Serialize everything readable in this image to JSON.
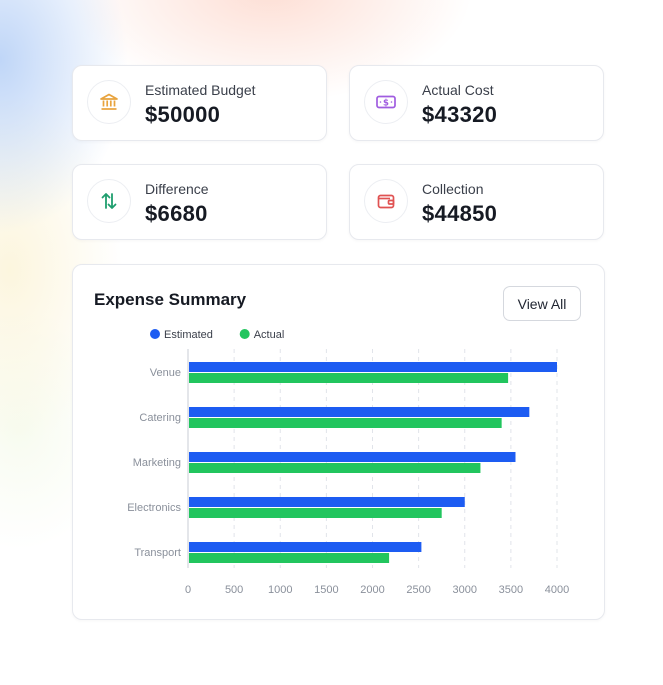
{
  "stats": [
    {
      "label": "Estimated Budget",
      "value": "$50000",
      "icon": "bank-icon",
      "color": "#e8a33d"
    },
    {
      "label": "Actual Cost",
      "value": "$43320",
      "icon": "money-icon",
      "color": "#a05ce0"
    },
    {
      "label": "Difference",
      "value": "$6680",
      "icon": "arrows-up-down-icon",
      "color": "#1f9e6e"
    },
    {
      "label": "Collection",
      "value": "$44850",
      "icon": "wallet-icon",
      "color": "#e05252"
    }
  ],
  "chart_card": {
    "title": "Expense Summary",
    "view_all_label": "View All"
  },
  "chart_data": {
    "type": "bar",
    "orientation": "horizontal",
    "categories": [
      "Venue",
      "Catering",
      "Marketing",
      "Electronics",
      "Transport"
    ],
    "series": [
      {
        "name": "Estimated",
        "color": "#1d5cf2",
        "values": [
          4000,
          3700,
          3550,
          3000,
          2530
        ]
      },
      {
        "name": "Actual",
        "color": "#22c55e",
        "values": [
          3470,
          3400,
          3170,
          2750,
          2180
        ]
      }
    ],
    "xlim": [
      0,
      4000
    ],
    "xticks": [
      0,
      500,
      1000,
      1500,
      2000,
      2500,
      3000,
      3500,
      4000
    ],
    "grid": true,
    "legend": "top-left"
  }
}
